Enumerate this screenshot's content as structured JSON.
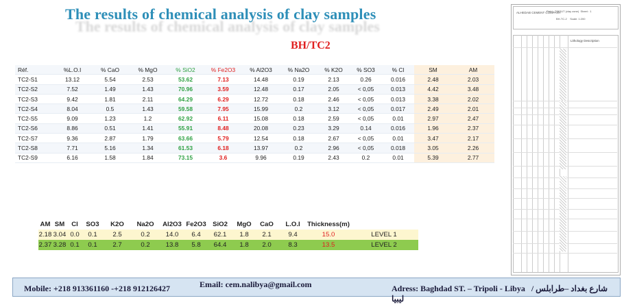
{
  "title": "The results of chemical analysis of clay samples",
  "subtitle": "BH/TC2",
  "main_table": {
    "headers": [
      "Réf.",
      "%L.O.I",
      "% CaO",
      "% MgO",
      "% SiO2",
      "% Fe2O3",
      "% Al2O3",
      "% Na2O",
      "% K2O",
      "% SO3",
      "% Cl",
      "SM",
      "AM"
    ],
    "rows": [
      [
        "TC2-S1",
        "13.12",
        "5.54",
        "2.53",
        "53.62",
        "7.13",
        "14.48",
        "0.19",
        "2.13",
        "0.26",
        "0.016",
        "2.48",
        "2.03"
      ],
      [
        "TC2-S2",
        "7.52",
        "1.49",
        "1.43",
        "70.96",
        "3.59",
        "12.48",
        "0.17",
        "2.05",
        "< 0,05",
        "0.013",
        "4.42",
        "3.48"
      ],
      [
        "TC2-S3",
        "9.42",
        "1.81",
        "2.11",
        "64.29",
        "6.29",
        "12.72",
        "0.18",
        "2.46",
        "< 0,05",
        "0.013",
        "3.38",
        "2.02"
      ],
      [
        "TC2-S4",
        "8.04",
        "0.5",
        "1.43",
        "59.58",
        "7.95",
        "15.99",
        "0.2",
        "3.12",
        "< 0,05",
        "0.017",
        "2.49",
        "2.01"
      ],
      [
        "TC2-S5",
        "9.09",
        "1.23",
        "1.2",
        "62.92",
        "6.11",
        "15.08",
        "0.18",
        "2.59",
        "< 0,05",
        "0.01",
        "2.97",
        "2.47"
      ],
      [
        "TC2-S6",
        "8.86",
        "0.51",
        "1.41",
        "55.91",
        "8.48",
        "20.08",
        "0.23",
        "3.29",
        "0.14",
        "0.016",
        "1.96",
        "2.37"
      ],
      [
        "TC2-S7",
        "9.36",
        "2.87",
        "1.79",
        "63.66",
        "5.79",
        "12.54",
        "0.18",
        "2.67",
        "< 0,05",
        "0.01",
        "3.47",
        "2.17"
      ],
      [
        "TC2-S8",
        "7.71",
        "5.16",
        "1.34",
        "61.53",
        "6.18",
        "13.97",
        "0.2",
        "2.96",
        "< 0,05",
        "0.018",
        "3.05",
        "2.26"
      ],
      [
        "TC2-S9",
        "6.16",
        "1.58",
        "1.84",
        "73.15",
        "3.6",
        "9.96",
        "0.19",
        "2.43",
        "0.2",
        "0.01",
        "5.39",
        "2.77"
      ]
    ]
  },
  "summary_table": {
    "headers": [
      "AM",
      "SM",
      "Cl",
      "SO3",
      "K2O",
      "Na2O",
      "Al2O3",
      "Fe2O3",
      "SiO2",
      "MgO",
      "CaO",
      "L.O.I",
      "Thickness(m)",
      ""
    ],
    "rows": [
      [
        "2.18",
        "3.04",
        "0.0",
        "0.1",
        "2.5",
        "0.2",
        "14.0",
        "6.4",
        "62.1",
        "1.8",
        "2.1",
        "9.4",
        "15.0",
        "LEVEL 1"
      ],
      [
        "2.37",
        "3.28",
        "0.1",
        "0.1",
        "2.7",
        "0.2",
        "13.8",
        "5.8",
        "64.4",
        "1.8",
        "2.0",
        "8.3",
        "13.5",
        "LEVEL 2"
      ]
    ]
  },
  "log_panel": {
    "company": "ALHEDAB CEMENT COMPANY",
    "field": "Field : TIBOUT (clay zone)",
    "sheet": "Sheet : 1",
    "bh": "BH-TC-2",
    "scale": "Scale: 1:200",
    "lithology_header": "Lithology Description"
  },
  "footer": {
    "mobile": "Mobile: +218 913361160 -+218 912126427",
    "email": "Email: cem.nalibya@gmail.com",
    "address": "Adress: Baghdad ST. – Tripoli - Libya",
    "address_ar": "شارع بغداد –طرابلس / ليبيا"
  },
  "colors": {
    "title": "#2e8fb8",
    "subtitle": "#e02020",
    "sio2": "#2ea043",
    "fe2o3": "#e02020",
    "level1_bg": "#fdf6cf",
    "level2_bg": "#8ecb4f",
    "footer_bg": "#d6e4f2"
  }
}
